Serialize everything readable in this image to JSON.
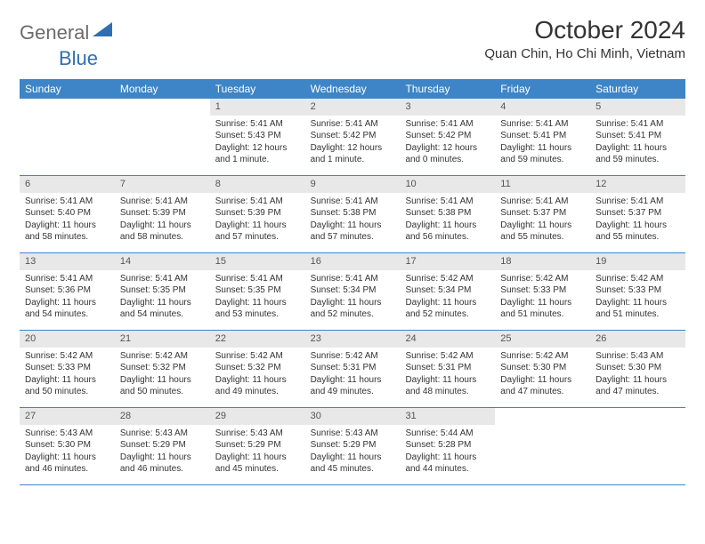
{
  "logo": {
    "part1": "General",
    "part2": "Blue"
  },
  "title": "October 2024",
  "location": "Quan Chin, Ho Chi Minh, Vietnam",
  "colors": {
    "header_bg": "#3d85c6",
    "header_text": "#ffffff",
    "daynum_bg": "#e8e8e8",
    "border": "#3d85c6",
    "logo_gray": "#6b6b6b",
    "logo_blue": "#2f6fb0"
  },
  "weekdays": [
    "Sunday",
    "Monday",
    "Tuesday",
    "Wednesday",
    "Thursday",
    "Friday",
    "Saturday"
  ],
  "weeks": [
    [
      {
        "n": "",
        "sr": "",
        "ss": "",
        "dl": ""
      },
      {
        "n": "",
        "sr": "",
        "ss": "",
        "dl": ""
      },
      {
        "n": "1",
        "sr": "5:41 AM",
        "ss": "5:43 PM",
        "dl": "12 hours and 1 minute."
      },
      {
        "n": "2",
        "sr": "5:41 AM",
        "ss": "5:42 PM",
        "dl": "12 hours and 1 minute."
      },
      {
        "n": "3",
        "sr": "5:41 AM",
        "ss": "5:42 PM",
        "dl": "12 hours and 0 minutes."
      },
      {
        "n": "4",
        "sr": "5:41 AM",
        "ss": "5:41 PM",
        "dl": "11 hours and 59 minutes."
      },
      {
        "n": "5",
        "sr": "5:41 AM",
        "ss": "5:41 PM",
        "dl": "11 hours and 59 minutes."
      }
    ],
    [
      {
        "n": "6",
        "sr": "5:41 AM",
        "ss": "5:40 PM",
        "dl": "11 hours and 58 minutes."
      },
      {
        "n": "7",
        "sr": "5:41 AM",
        "ss": "5:39 PM",
        "dl": "11 hours and 58 minutes."
      },
      {
        "n": "8",
        "sr": "5:41 AM",
        "ss": "5:39 PM",
        "dl": "11 hours and 57 minutes."
      },
      {
        "n": "9",
        "sr": "5:41 AM",
        "ss": "5:38 PM",
        "dl": "11 hours and 57 minutes."
      },
      {
        "n": "10",
        "sr": "5:41 AM",
        "ss": "5:38 PM",
        "dl": "11 hours and 56 minutes."
      },
      {
        "n": "11",
        "sr": "5:41 AM",
        "ss": "5:37 PM",
        "dl": "11 hours and 55 minutes."
      },
      {
        "n": "12",
        "sr": "5:41 AM",
        "ss": "5:37 PM",
        "dl": "11 hours and 55 minutes."
      }
    ],
    [
      {
        "n": "13",
        "sr": "5:41 AM",
        "ss": "5:36 PM",
        "dl": "11 hours and 54 minutes."
      },
      {
        "n": "14",
        "sr": "5:41 AM",
        "ss": "5:35 PM",
        "dl": "11 hours and 54 minutes."
      },
      {
        "n": "15",
        "sr": "5:41 AM",
        "ss": "5:35 PM",
        "dl": "11 hours and 53 minutes."
      },
      {
        "n": "16",
        "sr": "5:41 AM",
        "ss": "5:34 PM",
        "dl": "11 hours and 52 minutes."
      },
      {
        "n": "17",
        "sr": "5:42 AM",
        "ss": "5:34 PM",
        "dl": "11 hours and 52 minutes."
      },
      {
        "n": "18",
        "sr": "5:42 AM",
        "ss": "5:33 PM",
        "dl": "11 hours and 51 minutes."
      },
      {
        "n": "19",
        "sr": "5:42 AM",
        "ss": "5:33 PM",
        "dl": "11 hours and 51 minutes."
      }
    ],
    [
      {
        "n": "20",
        "sr": "5:42 AM",
        "ss": "5:33 PM",
        "dl": "11 hours and 50 minutes."
      },
      {
        "n": "21",
        "sr": "5:42 AM",
        "ss": "5:32 PM",
        "dl": "11 hours and 50 minutes."
      },
      {
        "n": "22",
        "sr": "5:42 AM",
        "ss": "5:32 PM",
        "dl": "11 hours and 49 minutes."
      },
      {
        "n": "23",
        "sr": "5:42 AM",
        "ss": "5:31 PM",
        "dl": "11 hours and 49 minutes."
      },
      {
        "n": "24",
        "sr": "5:42 AM",
        "ss": "5:31 PM",
        "dl": "11 hours and 48 minutes."
      },
      {
        "n": "25",
        "sr": "5:42 AM",
        "ss": "5:30 PM",
        "dl": "11 hours and 47 minutes."
      },
      {
        "n": "26",
        "sr": "5:43 AM",
        "ss": "5:30 PM",
        "dl": "11 hours and 47 minutes."
      }
    ],
    [
      {
        "n": "27",
        "sr": "5:43 AM",
        "ss": "5:30 PM",
        "dl": "11 hours and 46 minutes."
      },
      {
        "n": "28",
        "sr": "5:43 AM",
        "ss": "5:29 PM",
        "dl": "11 hours and 46 minutes."
      },
      {
        "n": "29",
        "sr": "5:43 AM",
        "ss": "5:29 PM",
        "dl": "11 hours and 45 minutes."
      },
      {
        "n": "30",
        "sr": "5:43 AM",
        "ss": "5:29 PM",
        "dl": "11 hours and 45 minutes."
      },
      {
        "n": "31",
        "sr": "5:44 AM",
        "ss": "5:28 PM",
        "dl": "11 hours and 44 minutes."
      },
      {
        "n": "",
        "sr": "",
        "ss": "",
        "dl": ""
      },
      {
        "n": "",
        "sr": "",
        "ss": "",
        "dl": ""
      }
    ]
  ],
  "labels": {
    "sunrise": "Sunrise:",
    "sunset": "Sunset:",
    "daylight": "Daylight:"
  }
}
